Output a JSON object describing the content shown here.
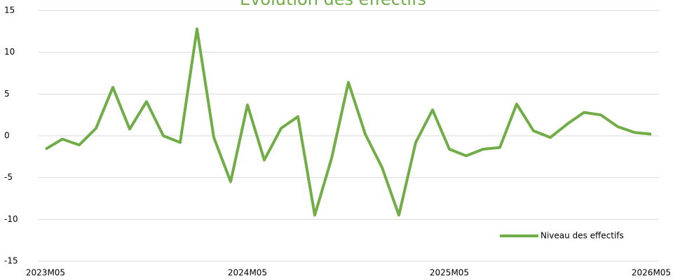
{
  "chart_data": {
    "type": "line",
    "title": "Evolution des effectifs",
    "categories": [
      "2023M05",
      null,
      null,
      null,
      null,
      null,
      null,
      null,
      null,
      null,
      null,
      null,
      "2024M05",
      null,
      null,
      null,
      null,
      null,
      null,
      null,
      null,
      null,
      null,
      null,
      "2025M05",
      null,
      null,
      null,
      null,
      null,
      null,
      null,
      null,
      null,
      null,
      null,
      "2026M05"
    ],
    "series": [
      {
        "name": "Niveau des effectifs",
        "color": "#70ad47",
        "values": [
          -1.6,
          -0.4,
          -1.1,
          0.9,
          5.8,
          0.8,
          4.1,
          0,
          -0.8,
          12.8,
          -0.2,
          -5.5,
          3.7,
          -2.9,
          0.9,
          2.3,
          -9.5,
          -2.7,
          6.4,
          0.2,
          -3.8,
          -9.5,
          -0.8,
          3.1,
          -1.6,
          -2.4,
          -1.6,
          -1.4,
          3.8,
          0.6,
          -0.2,
          1.4,
          2.8,
          2.5,
          1.1,
          0.4,
          0.2
        ]
      }
    ],
    "ylim": [
      -15,
      15
    ],
    "yticks": [
      -15,
      -10,
      -5,
      0,
      5,
      10,
      15
    ],
    "grid": true,
    "legend": "lower right"
  }
}
